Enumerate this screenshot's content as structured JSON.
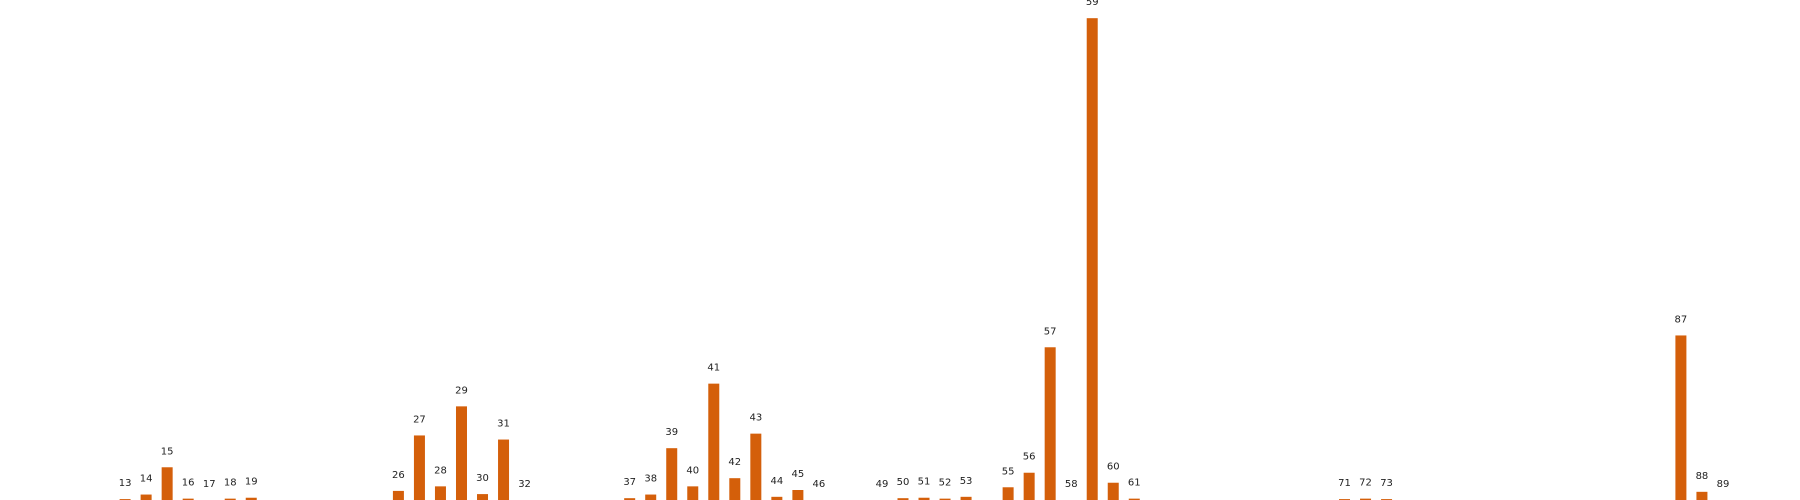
{
  "chart_data": {
    "type": "bar",
    "title": "",
    "xlabel": "",
    "ylabel": "",
    "grid": false,
    "legend": "none",
    "bar_color": "#d45f0a",
    "categories": [
      "13",
      "14",
      "15",
      "16",
      "17",
      "18",
      "19",
      "26",
      "27",
      "28",
      "29",
      "30",
      "31",
      "32",
      "37",
      "38",
      "39",
      "40",
      "41",
      "42",
      "43",
      "44",
      "45",
      "46",
      "49",
      "50",
      "51",
      "52",
      "53",
      "55",
      "56",
      "57",
      "58",
      "59",
      "60",
      "61",
      "71",
      "72",
      "73",
      "87",
      "88",
      "89"
    ],
    "x": [
      13,
      14,
      15,
      16,
      17,
      18,
      19,
      26,
      27,
      28,
      29,
      30,
      31,
      32,
      37,
      38,
      39,
      40,
      41,
      42,
      43,
      44,
      45,
      46,
      49,
      50,
      51,
      52,
      53,
      55,
      56,
      57,
      58,
      59,
      60,
      61,
      71,
      72,
      73,
      87,
      88,
      89
    ],
    "values": [
      0.2,
      1.2,
      7.2,
      0.3,
      0,
      0.3,
      0.5,
      2,
      14.2,
      3,
      20.6,
      1.3,
      13.3,
      0,
      0.4,
      1.2,
      11.4,
      3,
      25.6,
      4.8,
      14.6,
      0.7,
      2.2,
      0,
      0,
      0.4,
      0.5,
      0.3,
      0.7,
      2.8,
      6,
      33.6,
      0,
      106,
      3.8,
      0.3,
      0.2,
      0.3,
      0.2,
      36.2,
      1.8,
      0
    ],
    "ylim": [
      0,
      110
    ],
    "xlim": [
      9,
      91
    ]
  }
}
